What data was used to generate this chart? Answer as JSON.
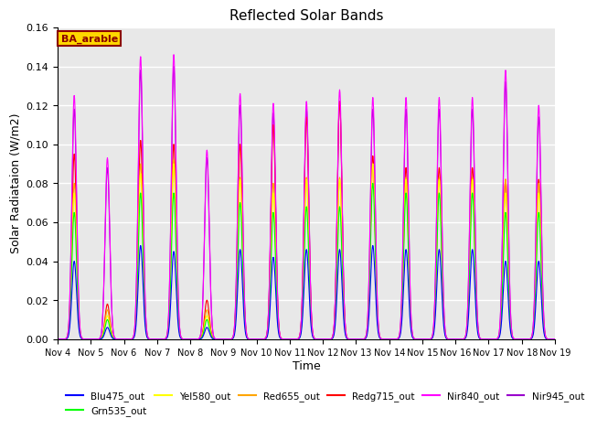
{
  "title": "Reflected Solar Bands",
  "xlabel": "Time",
  "ylabel": "Solar Radiataion (W/m2)",
  "ylim": [
    0,
    0.16
  ],
  "yticks": [
    0.0,
    0.02,
    0.04,
    0.06,
    0.08,
    0.1,
    0.12,
    0.14,
    0.16
  ],
  "xtick_labels": [
    "Nov 4",
    "Nov 5",
    "Nov 6",
    "Nov 7",
    "Nov 8",
    "Nov 9",
    "Nov 10",
    "Nov 11",
    "Nov 12",
    "Nov 13",
    "Nov 14",
    "Nov 15",
    "Nov 16",
    "Nov 17",
    "Nov 18",
    "Nov 19"
  ],
  "annotation_text": "BA_arable",
  "annotation_color": "#8B0000",
  "annotation_box_color": "#FFD700",
  "bands": [
    {
      "name": "Blu475_out",
      "color": "#0000FF"
    },
    {
      "name": "Grn535_out",
      "color": "#00FF00"
    },
    {
      "name": "Yel580_out",
      "color": "#FFFF00"
    },
    {
      "name": "Red655_out",
      "color": "#FFA500"
    },
    {
      "name": "Redg715_out",
      "color": "#FF0000"
    },
    {
      "name": "Nir840_out",
      "color": "#FF00FF"
    },
    {
      "name": "Nir945_out",
      "color": "#9900CC"
    }
  ],
  "bg_color": "#E8E8E8",
  "grid_color": "white",
  "blu_peaks": [
    0.04,
    0.006,
    0.048,
    0.045,
    0.006,
    0.046,
    0.042,
    0.046,
    0.046,
    0.048,
    0.046,
    0.046,
    0.046,
    0.04,
    0.04
  ],
  "grn_peaks": [
    0.065,
    0.01,
    0.075,
    0.075,
    0.01,
    0.07,
    0.065,
    0.068,
    0.068,
    0.08,
    0.075,
    0.075,
    0.075,
    0.065,
    0.065
  ],
  "yel_peaks": [
    0.075,
    0.012,
    0.085,
    0.09,
    0.012,
    0.082,
    0.075,
    0.082,
    0.082,
    0.09,
    0.082,
    0.082,
    0.082,
    0.075,
    0.075
  ],
  "red_peaks": [
    0.08,
    0.015,
    0.09,
    0.092,
    0.015,
    0.083,
    0.08,
    0.083,
    0.083,
    0.09,
    0.083,
    0.083,
    0.083,
    0.082,
    0.08
  ],
  "redg_peaks": [
    0.095,
    0.018,
    0.102,
    0.1,
    0.02,
    0.1,
    0.11,
    0.114,
    0.122,
    0.094,
    0.088,
    0.088,
    0.088,
    0.082,
    0.082
  ],
  "nir840_peaks": [
    0.125,
    0.093,
    0.145,
    0.146,
    0.097,
    0.126,
    0.121,
    0.122,
    0.128,
    0.124,
    0.124,
    0.124,
    0.124,
    0.138,
    0.12
  ],
  "nir945_peaks": [
    0.118,
    0.088,
    0.138,
    0.14,
    0.093,
    0.12,
    0.116,
    0.118,
    0.122,
    0.118,
    0.118,
    0.118,
    0.118,
    0.132,
    0.114
  ]
}
